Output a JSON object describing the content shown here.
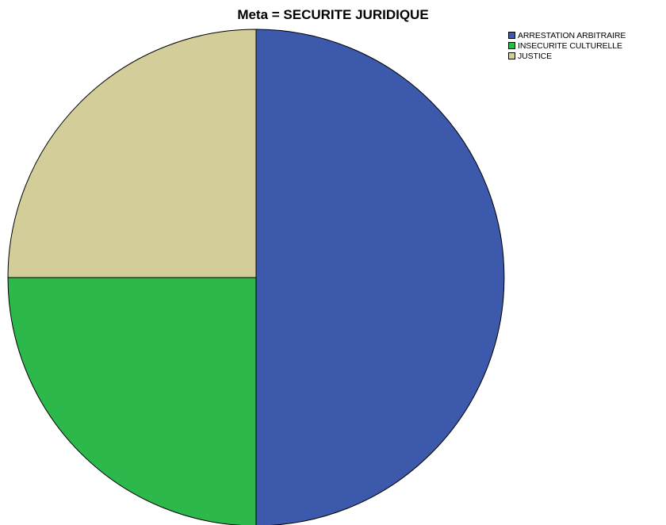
{
  "chart_data": {
    "type": "pie",
    "title": "Meta = SECURITE JURIDIQUE",
    "categories": [
      "ARRESTATION ARBITRAIRE",
      "INSECURITE CULTURELLE",
      "JUSTICE"
    ],
    "values": [
      50,
      25,
      25
    ],
    "colors": [
      "#3d59ab",
      "#2db84b",
      "#d3cd9a"
    ],
    "start_angle_deg": 0,
    "direction": "clockwise",
    "legend_position": "top-right",
    "slice_labels": false
  }
}
